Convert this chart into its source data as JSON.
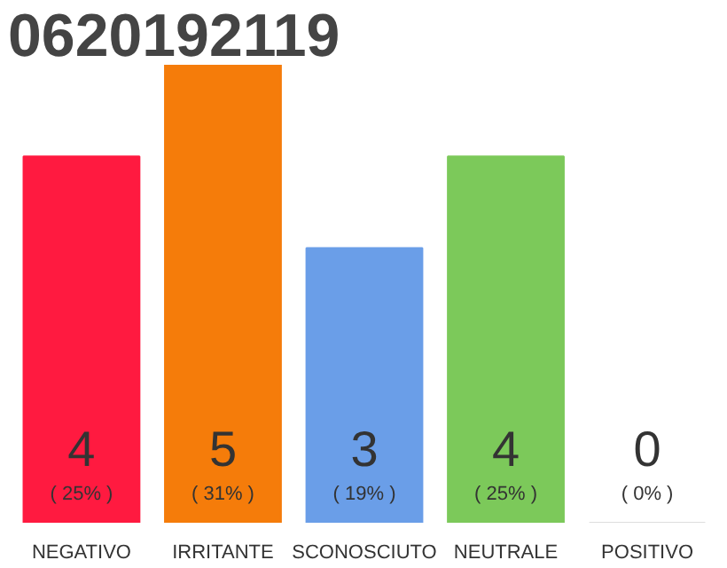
{
  "chart_data": {
    "type": "bar",
    "title": "0620192119",
    "categories": [
      "NEGATIVO",
      "IRRITANTE",
      "SCONOSCIUTO",
      "NEUTRALE",
      "POSITIVO"
    ],
    "values": [
      4,
      5,
      3,
      4,
      0
    ],
    "colors": [
      "#ff1a40",
      "#f57c0a",
      "#6a9ee8",
      "#7cc95a",
      "#dddddd"
    ],
    "value_labels": [
      "4",
      "5",
      "3",
      "4",
      "0"
    ],
    "annotations": [
      "( 25% )",
      "( 31% )",
      "( 19% )",
      "( 25% )",
      "( 0% )"
    ]
  }
}
